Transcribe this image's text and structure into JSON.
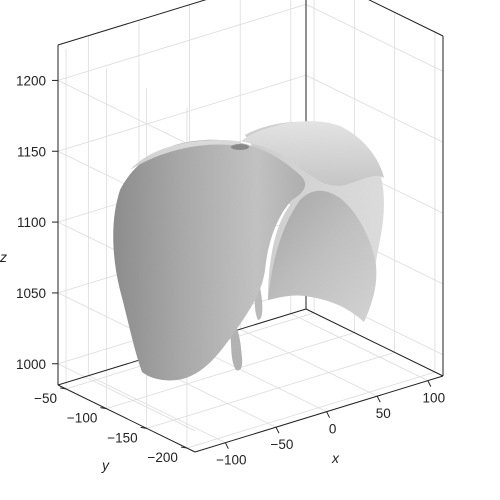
{
  "chart_data": {
    "type": "surface3d",
    "title": "",
    "xlabel": "x",
    "ylabel": "y",
    "zlabel": "z",
    "x_ticks": [
      -100,
      -50,
      0,
      50,
      100
    ],
    "y_ticks": [
      -50,
      -100,
      -150,
      -200
    ],
    "z_ticks": [
      1000,
      1050,
      1100,
      1150,
      1200
    ],
    "xlim": [
      -130,
      115
    ],
    "ylim": [
      -40,
      -210
    ],
    "zlim": [
      985,
      1225
    ],
    "grid": true,
    "surface_color": "#bdbdbd",
    "surface_description_color_light": "#e4e4e4",
    "surface_description_color_dark": "#9a9a9a"
  }
}
